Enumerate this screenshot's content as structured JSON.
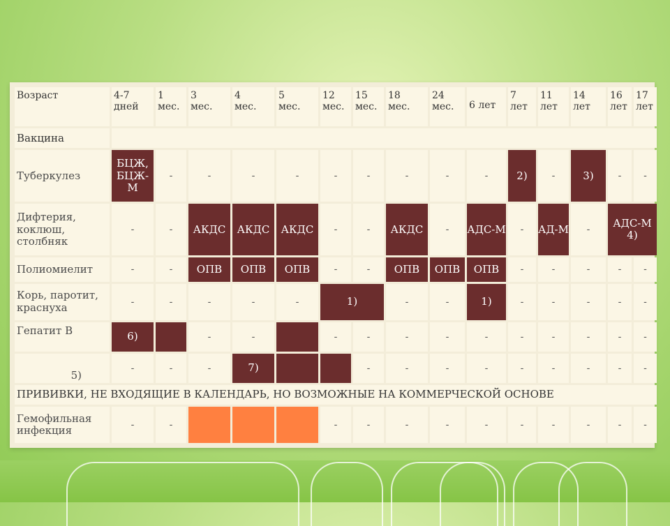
{
  "headers": {
    "age_label": "Возраст",
    "vaccine_label": "Вакцина",
    "ages": [
      {
        "a": "4-7",
        "b": "дней"
      },
      {
        "a": "1",
        "b": "мес."
      },
      {
        "a": "3",
        "b": "мес."
      },
      {
        "a": "4",
        "b": "мес."
      },
      {
        "a": "5",
        "b": "мес."
      },
      {
        "a": "12",
        "b": "мес."
      },
      {
        "a": "15",
        "b": "мес."
      },
      {
        "a": "18",
        "b": "мес."
      },
      {
        "a": "24",
        "b": "мес."
      },
      {
        "a": "6 лет",
        "b": ""
      },
      {
        "a": "7",
        "b": "лет"
      },
      {
        "a": "11",
        "b": "лет"
      },
      {
        "a": "14",
        "b": "лет"
      },
      {
        "a": "16",
        "b": "лет"
      },
      {
        "a": "17",
        "b": "лет"
      }
    ]
  },
  "rows": {
    "tb": {
      "label": "Туберкулез",
      "c": [
        "БЦЖ, БЦЖ-М",
        "-",
        "-",
        "-",
        "-",
        "-",
        "-",
        "-",
        "-",
        "-",
        "2)",
        "-",
        "3)",
        "-",
        "-"
      ]
    },
    "dtp": {
      "label": "Дифтерия, коклюш, столбняк",
      "c": [
        "-",
        "-",
        "АКДС",
        "АКДС",
        "АКДС",
        "-",
        "-",
        "АКДС",
        "-",
        "АДС-М",
        "-",
        "АД-М",
        "-",
        "АДС-М 4)"
      ]
    },
    "polio": {
      "label": "Полиомиелит",
      "c": [
        "-",
        "-",
        "ОПВ",
        "ОПВ",
        "ОПВ",
        "-",
        "-",
        "ОПВ",
        "ОПВ",
        "ОПВ",
        "-",
        "-",
        "-",
        "-",
        "-"
      ]
    },
    "mmr": {
      "label": "Корь, паротит, краснуха",
      "c": [
        "-",
        "-",
        "-",
        "-",
        "-",
        "1)",
        "-",
        "-",
        "1)",
        "-",
        "-",
        "-",
        "-",
        "-"
      ]
    },
    "hepb1": {
      "label": "Гепатит В",
      "c": [
        "6)",
        "",
        "-",
        "-",
        "",
        "-",
        "-",
        "-",
        "-",
        "-",
        "-",
        "-",
        "-",
        "-",
        "-"
      ]
    },
    "hepb2": {
      "label": "5)",
      "c": [
        "-",
        "-",
        "-",
        "7)",
        "",
        "",
        "-",
        "-",
        "-",
        "-",
        "-",
        "-",
        "-",
        "-",
        "-"
      ]
    },
    "commercial": "ПРИВИВКИ, НЕ ВХОДЯЩИЕ В КАЛЕНДАРЬ, НО ВОЗМОЖНЫЕ НА КОММЕРЧЕСКОЙ ОСНОВЕ",
    "hib": {
      "label": "Гемофильная инфекция",
      "c": [
        "-",
        "-",
        "",
        "",
        "",
        "-",
        "-",
        "-",
        "-",
        "-",
        "-",
        "-",
        "-",
        "-",
        "-"
      ]
    }
  },
  "colors": {
    "dark_cell": "#6b2d2d",
    "orange_cell": "#ff8040",
    "cell": "#fbf6e5"
  }
}
